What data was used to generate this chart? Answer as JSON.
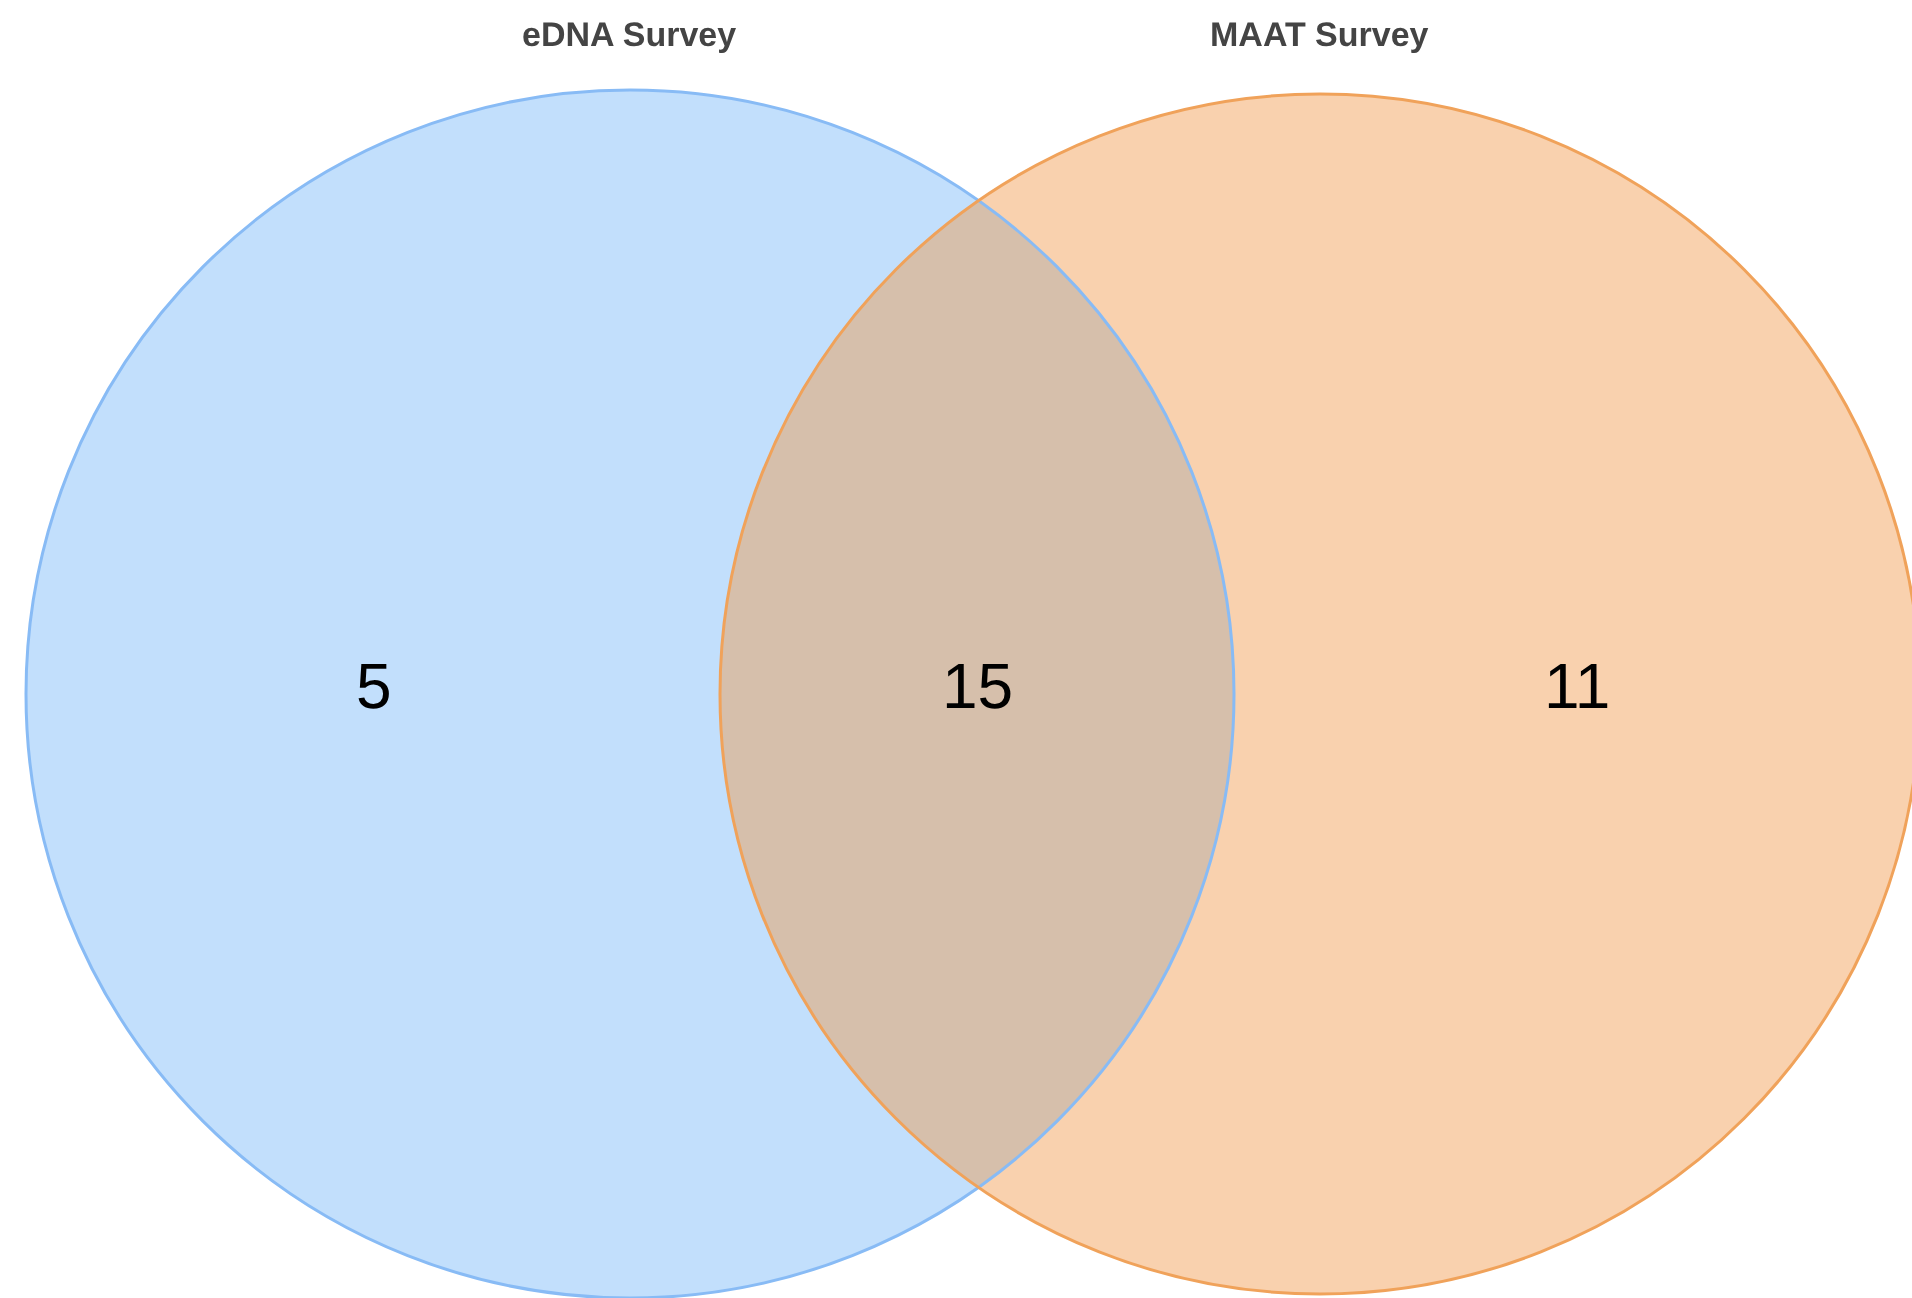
{
  "chart_data": {
    "type": "other",
    "annotations": [
      "eDNA Survey",
      "MAAT Survey"
    ],
    "categories": [
      null,
      null,
      null
    ],
    "colors": [
      "#c2dffc",
      "#d6bfab",
      "#f9d1ae"
    ],
    "values": [
      5,
      15,
      11
    ],
    "data_labels": true
  }
}
